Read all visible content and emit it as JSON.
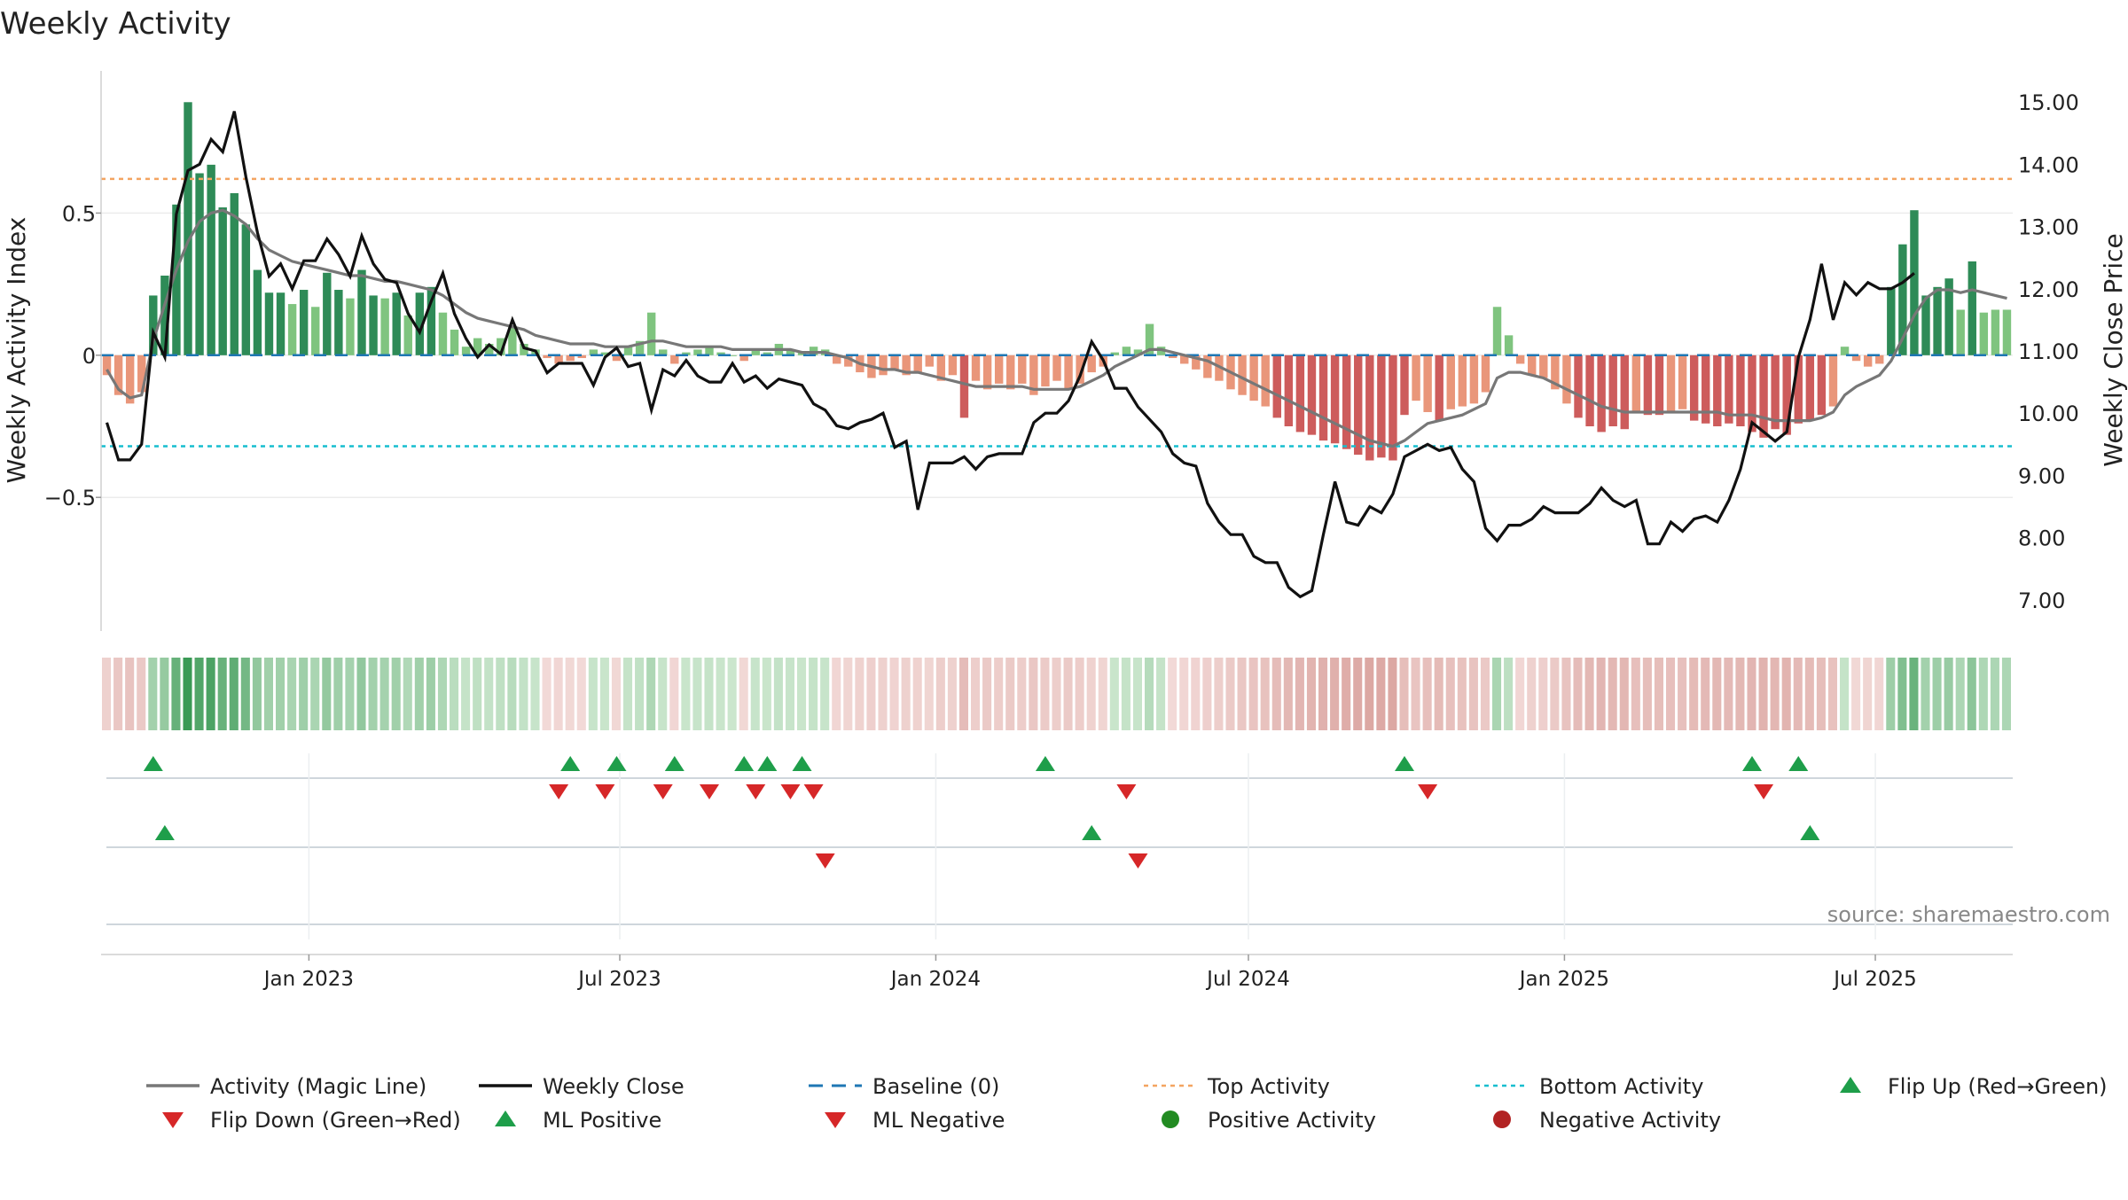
{
  "chart_data": {
    "type": "bar+line",
    "title": "Weekly Activity",
    "ylabel_left": "Weekly Activity Index",
    "ylabel_right": "Weekly Close Price",
    "source": "source: sharemaestro.com",
    "x_start": "2022-09-02",
    "x_end": "2025-09-19",
    "x_ticks": [
      "Jan 2023",
      "Jul 2023",
      "Jan 2024",
      "Jul 2024",
      "Jan 2025",
      "Jul 2025"
    ],
    "x_tick_dates": [
      "2023-01-01",
      "2023-07-01",
      "2024-01-01",
      "2024-07-01",
      "2025-01-01",
      "2025-07-01"
    ],
    "activity_ylim": [
      -0.97,
      1.0
    ],
    "activity_ticks": [
      0.5,
      0,
      -0.5
    ],
    "activity_tick_labels": [
      "0.5",
      "0",
      "−0.5"
    ],
    "price_ylim": [
      6.5,
      15.5
    ],
    "price_ticks": [
      15,
      14,
      13,
      12,
      11,
      10,
      9,
      8,
      7
    ],
    "price_tick_labels": [
      "15.00",
      "14.00",
      "13.00",
      "12.00",
      "11.00",
      "10.00",
      "9.00",
      "8.00",
      "7.00"
    ],
    "top_activity": 0.62,
    "bottom_activity": -0.32,
    "colors": {
      "strong_green": "#2e8b57",
      "light_green": "#7fc47f",
      "strong_red": "#cd5c5c",
      "light_red": "#e9967a",
      "magic_line": "#777777",
      "weekly_close": "#111111",
      "baseline": "#1f77b4",
      "top_activity": "#f4a460",
      "bottom_activity": "#17becf",
      "flip_up": "#1e9e4a",
      "flip_down": "#d62728",
      "positive_dot": "#228b22",
      "negative_dot": "#b22222"
    },
    "series": [
      {
        "name": "Weekly Activity",
        "kind": "bar",
        "values": [
          -0.07,
          -0.14,
          -0.17,
          -0.13,
          0.21,
          0.28,
          0.53,
          0.89,
          0.64,
          0.67,
          0.52,
          0.57,
          0.46,
          0.3,
          0.22,
          0.22,
          0.18,
          0.23,
          0.17,
          0.29,
          0.23,
          0.2,
          0.3,
          0.21,
          0.2,
          0.22,
          0.14,
          0.22,
          0.24,
          0.15,
          0.09,
          0.03,
          0.06,
          0.04,
          0.06,
          0.1,
          0.04,
          0.02,
          -0.01,
          -0.03,
          -0.02,
          -0.01,
          0.02,
          0.01,
          -0.02,
          0.03,
          0.05,
          0.15,
          0.02,
          -0.03,
          0.01,
          0.02,
          0.03,
          0.01,
          0,
          -0.02,
          0.02,
          0.01,
          0.04,
          0.02,
          0.01,
          0.03,
          0.02,
          -0.03,
          -0.04,
          -0.06,
          -0.08,
          -0.07,
          -0.05,
          -0.07,
          -0.06,
          -0.04,
          -0.09,
          -0.07,
          -0.22,
          -0.09,
          -0.12,
          -0.1,
          -0.12,
          -0.1,
          -0.14,
          -0.11,
          -0.09,
          -0.12,
          -0.1,
          -0.06,
          -0.04,
          0.01,
          0.03,
          0.02,
          0.11,
          0.03,
          -0.01,
          -0.03,
          -0.05,
          -0.08,
          -0.09,
          -0.12,
          -0.14,
          -0.16,
          -0.18,
          -0.22,
          -0.25,
          -0.27,
          -0.28,
          -0.3,
          -0.31,
          -0.33,
          -0.35,
          -0.37,
          -0.36,
          -0.37,
          -0.21,
          -0.16,
          -0.2,
          -0.23,
          -0.19,
          -0.18,
          -0.17,
          -0.13,
          0.17,
          0.07,
          -0.03,
          -0.07,
          -0.08,
          -0.12,
          -0.17,
          -0.22,
          -0.25,
          -0.27,
          -0.25,
          -0.26,
          -0.2,
          -0.21,
          -0.21,
          -0.2,
          -0.19,
          -0.23,
          -0.24,
          -0.25,
          -0.24,
          -0.25,
          -0.27,
          -0.29,
          -0.26,
          -0.28,
          -0.24,
          -0.23,
          -0.21,
          -0.18,
          0.03,
          -0.02,
          -0.04,
          -0.03,
          0.24,
          0.39,
          0.51,
          0.21,
          0.24,
          0.27,
          0.16,
          0.33,
          0.15,
          0.16,
          0.16
        ]
      },
      {
        "name": "Activity (Magic Line)",
        "kind": "line",
        "values": [
          -0.05,
          -0.12,
          -0.15,
          -0.14,
          0.05,
          0.18,
          0.3,
          0.4,
          0.47,
          0.5,
          0.51,
          0.49,
          0.46,
          0.41,
          0.37,
          0.35,
          0.33,
          0.32,
          0.31,
          0.3,
          0.29,
          0.28,
          0.28,
          0.27,
          0.26,
          0.26,
          0.25,
          0.24,
          0.23,
          0.21,
          0.18,
          0.15,
          0.13,
          0.12,
          0.11,
          0.1,
          0.09,
          0.07,
          0.06,
          0.05,
          0.04,
          0.04,
          0.04,
          0.03,
          0.03,
          0.03,
          0.04,
          0.05,
          0.05,
          0.04,
          0.03,
          0.03,
          0.03,
          0.03,
          0.02,
          0.02,
          0.02,
          0.02,
          0.02,
          0.02,
          0.01,
          0.01,
          0.01,
          0,
          -0.01,
          -0.03,
          -0.04,
          -0.05,
          -0.05,
          -0.06,
          -0.06,
          -0.07,
          -0.08,
          -0.09,
          -0.1,
          -0.11,
          -0.11,
          -0.11,
          -0.11,
          -0.11,
          -0.12,
          -0.12,
          -0.12,
          -0.12,
          -0.11,
          -0.09,
          -0.07,
          -0.04,
          -0.02,
          0,
          0.02,
          0.02,
          0.01,
          0,
          -0.01,
          -0.02,
          -0.04,
          -0.06,
          -0.08,
          -0.1,
          -0.12,
          -0.14,
          -0.16,
          -0.18,
          -0.2,
          -0.22,
          -0.24,
          -0.26,
          -0.28,
          -0.3,
          -0.31,
          -0.32,
          -0.3,
          -0.27,
          -0.24,
          -0.23,
          -0.22,
          -0.21,
          -0.19,
          -0.17,
          -0.08,
          -0.06,
          -0.06,
          -0.07,
          -0.08,
          -0.1,
          -0.12,
          -0.14,
          -0.16,
          -0.18,
          -0.19,
          -0.2,
          -0.2,
          -0.2,
          -0.2,
          -0.2,
          -0.2,
          -0.2,
          -0.2,
          -0.2,
          -0.21,
          -0.21,
          -0.21,
          -0.22,
          -0.23,
          -0.23,
          -0.23,
          -0.23,
          -0.22,
          -0.2,
          -0.14,
          -0.11,
          -0.09,
          -0.07,
          -0.02,
          0.06,
          0.14,
          0.2,
          0.23,
          0.23,
          0.22,
          0.23,
          0.22,
          0.21,
          0.2
        ]
      },
      {
        "name": "Weekly Close",
        "kind": "line",
        "axis": "right",
        "values": [
          9.85,
          9.25,
          9.25,
          9.5,
          11.3,
          10.9,
          13.2,
          13.9,
          14.0,
          14.4,
          14.2,
          14.85,
          13.8,
          12.9,
          12.2,
          12.4,
          12.0,
          12.45,
          12.45,
          12.8,
          12.55,
          12.2,
          12.85,
          12.4,
          12.15,
          12.1,
          11.6,
          11.3,
          11.8,
          12.25,
          11.6,
          11.2,
          10.9,
          11.1,
          10.95,
          11.5,
          11.05,
          11.0,
          10.65,
          10.8,
          10.8,
          10.8,
          10.45,
          10.9,
          11.05,
          10.75,
          10.8,
          10.05,
          10.7,
          10.6,
          10.85,
          10.6,
          10.5,
          10.5,
          10.8,
          10.5,
          10.6,
          10.4,
          10.55,
          10.5,
          10.45,
          10.15,
          10.05,
          9.8,
          9.75,
          9.85,
          9.9,
          10.0,
          9.45,
          9.55,
          8.45,
          9.2,
          9.2,
          9.2,
          9.3,
          9.1,
          9.3,
          9.35,
          9.35,
          9.35,
          9.85,
          10.0,
          10.0,
          10.2,
          10.6,
          11.15,
          10.85,
          10.4,
          10.4,
          10.1,
          9.9,
          9.7,
          9.35,
          9.2,
          9.15,
          8.55,
          8.25,
          8.05,
          8.05,
          7.7,
          7.6,
          7.6,
          7.2,
          7.05,
          7.15,
          8.05,
          8.9,
          8.25,
          8.2,
          8.5,
          8.4,
          8.7,
          9.3,
          9.4,
          9.5,
          9.4,
          9.45,
          9.1,
          8.9,
          8.15,
          7.95,
          8.2,
          8.2,
          8.3,
          8.5,
          8.4,
          8.4,
          8.4,
          8.55,
          8.8,
          8.6,
          8.5,
          8.6,
          7.9,
          7.9,
          8.25,
          8.1,
          8.3,
          8.35,
          8.25,
          8.6,
          9.1,
          9.85,
          9.7,
          9.55,
          9.7,
          10.9,
          11.5,
          12.4,
          11.5,
          12.1,
          11.9,
          12.1,
          12.0,
          12.0,
          12.1,
          12.25
        ]
      }
    ],
    "heatmap_title": "",
    "flip_up_weeks": [
      4,
      40,
      44,
      49,
      55,
      57,
      60,
      81,
      112,
      142,
      146
    ],
    "flip_down_weeks": [
      39,
      43,
      48,
      52,
      56,
      59,
      61,
      88,
      114,
      143
    ],
    "ml_positive_weeks": [
      5,
      85,
      147
    ],
    "ml_negative_weeks": [
      62,
      89
    ],
    "legend": [
      {
        "label": "Activity (Magic Line)",
        "kind": "line",
        "color": "#777777"
      },
      {
        "label": "Weekly Close",
        "kind": "line",
        "color": "#111111"
      },
      {
        "label": "Baseline (0)",
        "kind": "dashed",
        "color": "#1f77b4"
      },
      {
        "label": "Top Activity",
        "kind": "dotted",
        "color": "#f4a460"
      },
      {
        "label": "Bottom Activity",
        "kind": "dotted",
        "color": "#17becf"
      },
      {
        "label": "Flip Up (Red→Green)",
        "kind": "triangle-up",
        "color": "#1e9e4a"
      },
      {
        "label": "Flip Down (Green→Red)",
        "kind": "triangle-down",
        "color": "#d62728"
      },
      {
        "label": "ML Positive",
        "kind": "triangle-up",
        "color": "#1e9e4a"
      },
      {
        "label": "ML Negative",
        "kind": "triangle-down",
        "color": "#d62728"
      },
      {
        "label": "Positive Activity",
        "kind": "dot",
        "color": "#228b22"
      },
      {
        "label": "Negative Activity",
        "kind": "dot",
        "color": "#b22222"
      }
    ],
    "legend_placement": "bottom"
  }
}
